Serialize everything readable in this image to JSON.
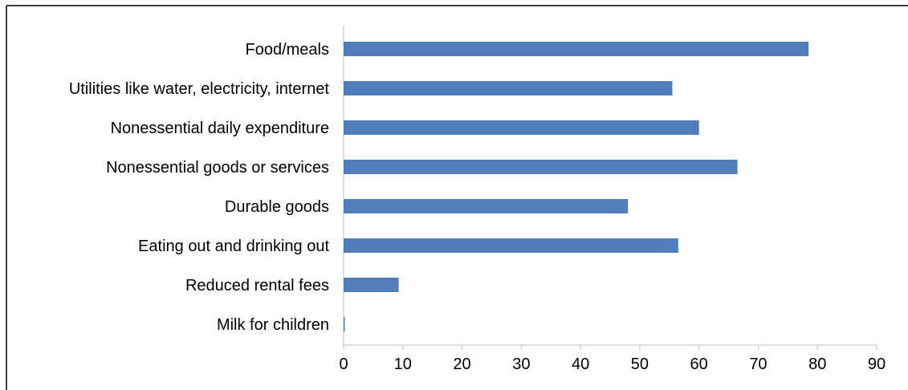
{
  "chart_data": {
    "type": "bar",
    "orientation": "horizontal",
    "categories": [
      "Food/meals",
      "Utilities like water, electricity, internet",
      "Nonessential daily expenditure",
      "Nonessential goods or services",
      "Durable goods",
      "Eating out and drinking out",
      "Reduced rental fees",
      "Milk for children"
    ],
    "values": [
      78.5,
      55.5,
      60,
      66.5,
      48,
      56.5,
      9.3,
      0.2
    ],
    "xticks": [
      "0",
      "10",
      "20",
      "30",
      "40",
      "50",
      "60",
      "70",
      "80",
      "90"
    ],
    "xlim": [
      0,
      90
    ],
    "grid": false,
    "legend": "none",
    "title": "",
    "xlabel": "",
    "ylabel": "",
    "colors": {
      "bar": "#4F7EBB",
      "axis": "#BFBFBF",
      "frame": "#000000"
    }
  }
}
